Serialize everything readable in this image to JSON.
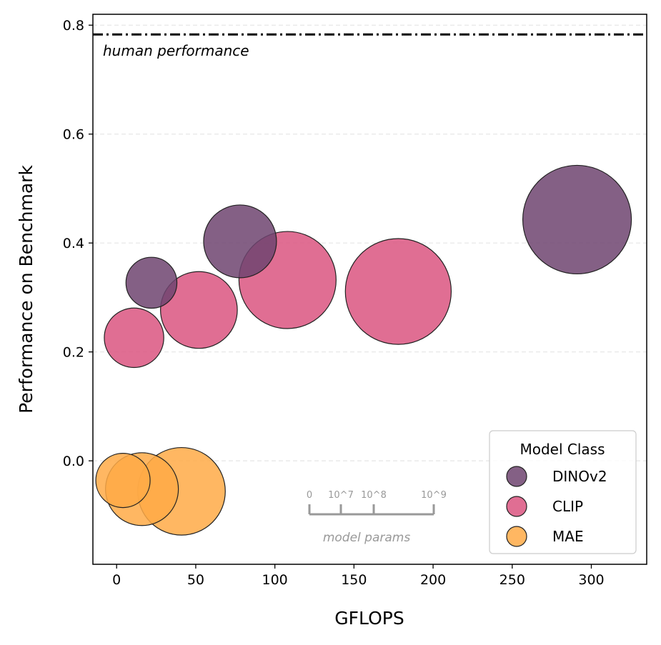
{
  "chart_data": {
    "type": "scatter",
    "xlabel": "GFLOPS",
    "ylabel": "Performance on Benchmark",
    "xlim": [
      -15,
      335
    ],
    "ylim": [
      -0.19,
      0.82
    ],
    "xticks": [
      0,
      50,
      100,
      150,
      200,
      250,
      300
    ],
    "xtick_labels": [
      "0",
      "50",
      "100",
      "150",
      "200",
      "250",
      "300"
    ],
    "yticks": [
      0.0,
      0.2,
      0.4,
      0.6,
      0.8
    ],
    "ytick_labels": [
      "0.0",
      "0.2",
      "0.4",
      "0.6",
      "0.8"
    ],
    "grid": "horizontal dashed",
    "reference_line": {
      "y": 0.783,
      "label": "human performance"
    },
    "size_scale": {
      "labels": [
        "0",
        "10^7",
        "10^8",
        "10^9"
      ],
      "caption": "model params"
    },
    "legend": {
      "title": "Model Class",
      "placement": "bottom-right"
    },
    "series": [
      {
        "name": "DINOv2",
        "color": "#6e4470",
        "points": [
          {
            "x": 22,
            "y": 0.327,
            "size": 0.22
          },
          {
            "x": 78,
            "y": 0.403,
            "size": 0.45
          },
          {
            "x": 291,
            "y": 0.443,
            "size": 1.0
          }
        ]
      },
      {
        "name": "CLIP",
        "color": "#db5580",
        "points": [
          {
            "x": 11,
            "y": 0.226,
            "size": 0.3
          },
          {
            "x": 52,
            "y": 0.277,
            "size": 0.5
          },
          {
            "x": 108,
            "y": 0.332,
            "size": 0.8
          },
          {
            "x": 178,
            "y": 0.311,
            "size": 0.95
          }
        ]
      },
      {
        "name": "MAE",
        "color": "#ffaa47",
        "points": [
          {
            "x": 4,
            "y": -0.036,
            "size": 0.25
          },
          {
            "x": 16,
            "y": -0.052,
            "size": 0.45
          },
          {
            "x": 41,
            "y": -0.056,
            "size": 0.65
          }
        ]
      }
    ]
  }
}
